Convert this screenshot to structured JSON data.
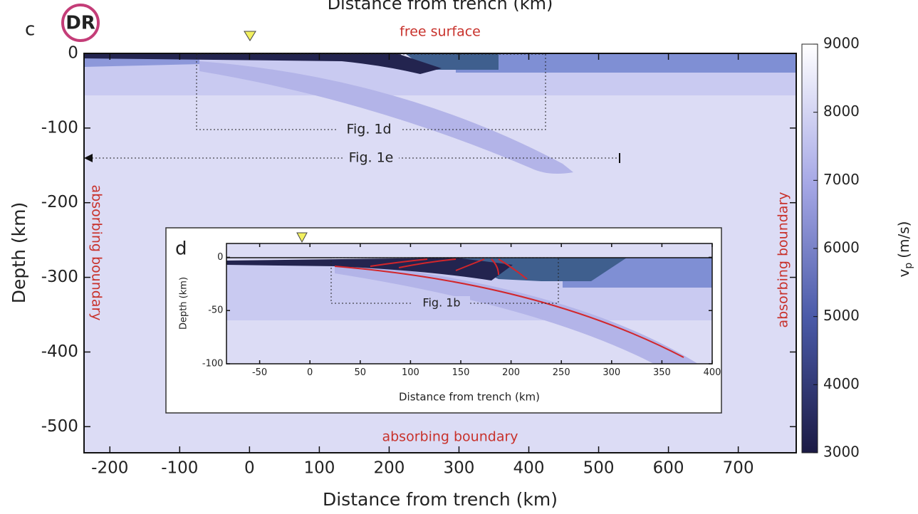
{
  "badge": "DR",
  "chart_data": [
    {
      "type": "section",
      "panel": "c",
      "title": "Distance from trench (km)",
      "x_label": "Distance from trench (km)",
      "y_label": "Depth (km)",
      "xlim": [
        -237,
        783
      ],
      "ylim": [
        -535,
        0
      ],
      "xticks": [
        -200,
        -100,
        0,
        100,
        200,
        300,
        400,
        500,
        600,
        700
      ],
      "yticks": [
        -500,
        -400,
        -300,
        -200,
        -100,
        0
      ],
      "annotations": [
        "free surface",
        "absorbing boundary",
        "absorbing boundary",
        "absorbing boundary",
        "Fig. 1d",
        "Fig. 1e"
      ],
      "colorbar": {
        "label": "v",
        "label_sub": "p",
        "label_unit": "(m/s)",
        "lim": [
          3000,
          9000
        ],
        "ticks": [
          3000,
          4000,
          5000,
          6000,
          7000,
          8000,
          9000
        ]
      }
    },
    {
      "type": "section",
      "panel": "d",
      "x_label": "Distance from trench (km)",
      "y_label": "Depth (km)",
      "xlim": [
        -83,
        400
      ],
      "ylim": [
        -100,
        13
      ],
      "xticks": [
        -50,
        0,
        50,
        100,
        150,
        200,
        250,
        300,
        350,
        400
      ],
      "yticks": [
        -100,
        -50,
        0
      ],
      "annotations": [
        "Fig. 1b"
      ]
    }
  ]
}
